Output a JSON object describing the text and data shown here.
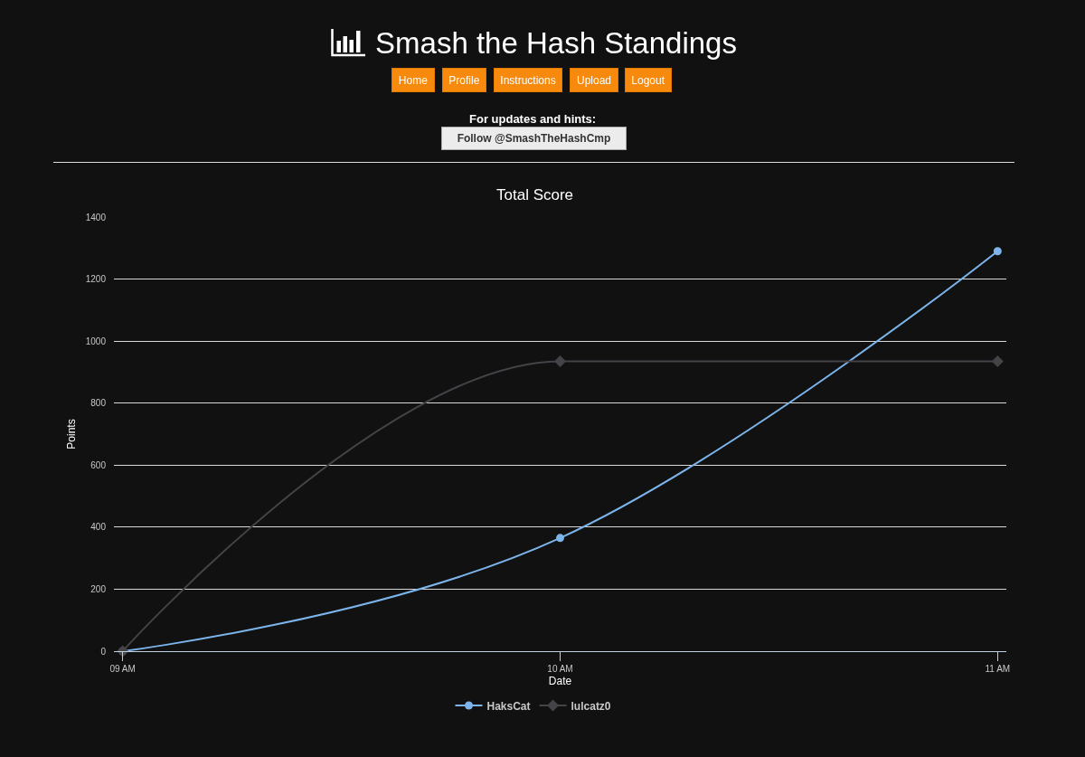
{
  "chart_data": {
    "type": "line",
    "title": "Smash the Hash Standings",
    "subtitle": "Total Score",
    "xlabel": "Date",
    "ylabel": "Points",
    "annotations": [
      "Home",
      "Profile",
      "Instructions",
      "Upload",
      "Logout",
      "For updates and hints:",
      "Follow @SmashTheHashCmp"
    ],
    "x": [
      9,
      10,
      11
    ],
    "series": [
      {
        "name": "HaksCat",
        "color": "#7cb5ec",
        "marker": "circle",
        "values": [
          0,
          365,
          1290
        ]
      },
      {
        "name": "lulcatz0",
        "color": "#434348",
        "marker": "diamond",
        "values": [
          0,
          935,
          935
        ]
      }
    ],
    "xlim": [
      8.98,
      11.02
    ],
    "xticks": [
      {
        "value": 9,
        "label": "09 AM"
      },
      {
        "value": 10,
        "label": "10 AM"
      },
      {
        "value": 11,
        "label": "11 AM"
      }
    ],
    "ylim": [
      0,
      1400
    ],
    "yticks": [
      0,
      200,
      400,
      600,
      800,
      1000,
      1200,
      1400
    ],
    "grid": "y",
    "legend": "bottom",
    "line_style": "solid"
  }
}
